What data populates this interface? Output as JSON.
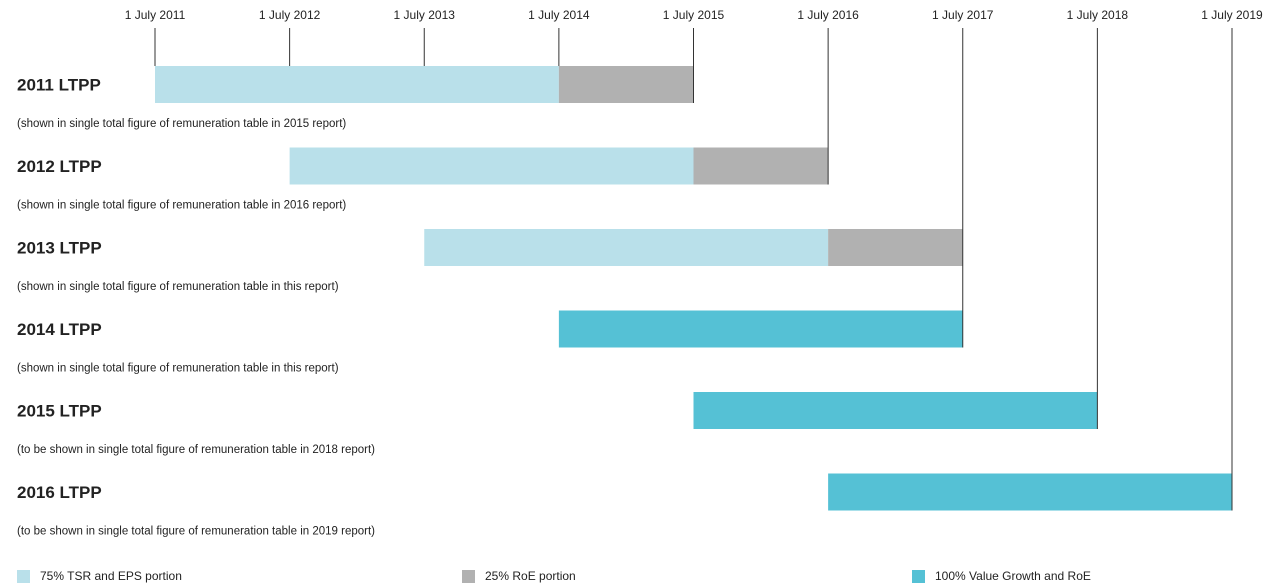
{
  "chart_data": {
    "type": "gantt",
    "categories": [
      "2011 LTPP",
      "2012 LTPP",
      "2013 LTPP",
      "2014 LTPP",
      "2015 LTPP",
      "2016 LTPP"
    ],
    "notes": [
      "(shown in single total figure of remuneration table in 2015 report)",
      "(shown in single total figure of remuneration table in 2016 report)",
      "(shown in single total figure of remuneration table in this report)",
      "(shown in single total figure of remuneration table in this report)",
      "(to be shown in single total figure of remuneration table in 2018 report)",
      "(to be shown in single total figure of remuneration table in 2019 report)"
    ],
    "xlim": [
      2011,
      2019
    ],
    "xticks": [
      {
        "value": 2011,
        "label": "1 July 2011"
      },
      {
        "value": 2012,
        "label": "1 July 2012"
      },
      {
        "value": 2013,
        "label": "1 July 2013"
      },
      {
        "value": 2014,
        "label": "1 July 2014"
      },
      {
        "value": 2015,
        "label": "1 July 2015"
      },
      {
        "value": 2016,
        "label": "1 July 2016"
      },
      {
        "value": 2017,
        "label": "1 July 2017"
      },
      {
        "value": 2018,
        "label": "1 July 2018"
      },
      {
        "value": 2019,
        "label": "1 July 2019"
      }
    ],
    "series": [
      {
        "name": "75% TSR and EPS portion",
        "color": "#b9e0ea",
        "starts": [
          2011,
          2012,
          2013,
          null,
          null,
          null
        ],
        "ends": [
          2014,
          2015,
          2016,
          null,
          null,
          null
        ]
      },
      {
        "name": "25% RoE portion",
        "color": "#b1b1b1",
        "starts": [
          2014,
          2015,
          2016,
          null,
          null,
          null
        ],
        "ends": [
          2015,
          2016,
          2017,
          null,
          null,
          null
        ]
      },
      {
        "name": "100% Value Growth and RoE",
        "color": "#55c1d5",
        "starts": [
          null,
          null,
          null,
          2014,
          2015,
          2016
        ],
        "ends": [
          null,
          null,
          null,
          2017,
          2018,
          2019
        ]
      }
    ]
  }
}
